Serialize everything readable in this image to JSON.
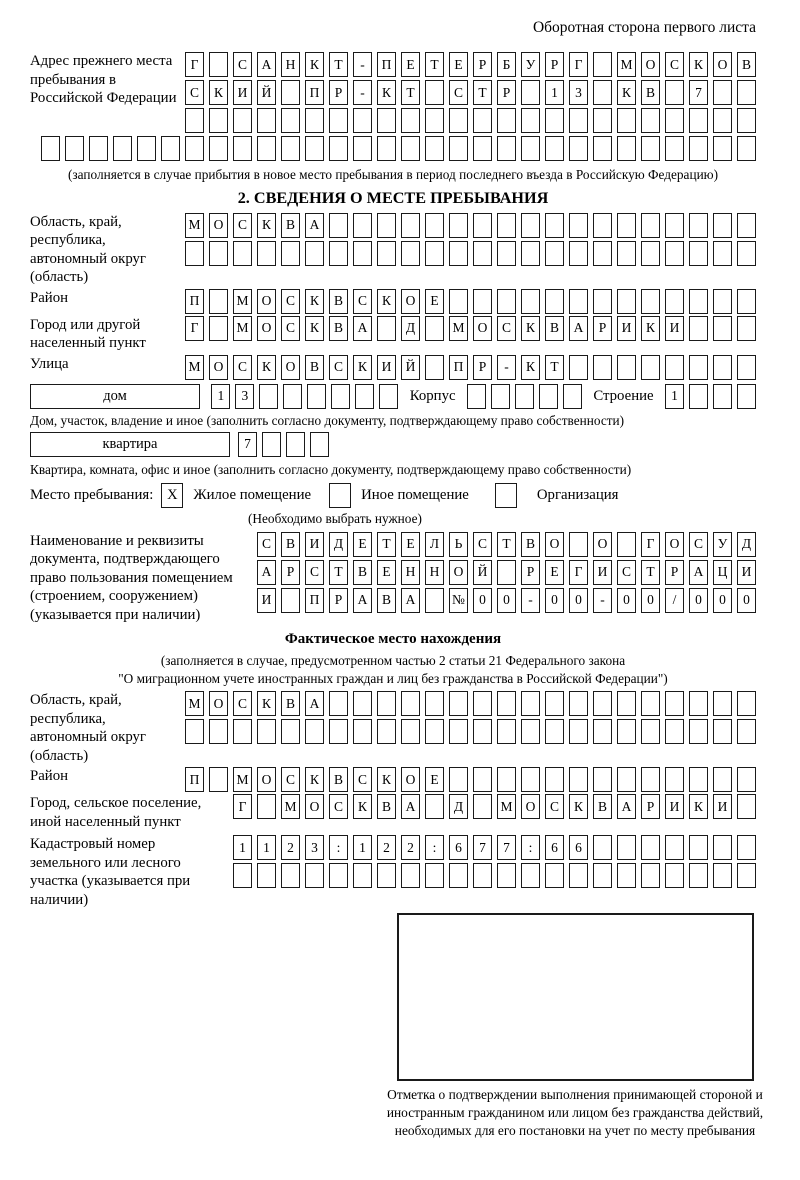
{
  "title": "Оборотная сторона первого листа",
  "prev_address": {
    "label": "Адрес прежнего места пребывания в Российской Федерации",
    "row1": "Г САНКТ-ПЕТЕРБУРГ МОСКОВ",
    "row2": "СКИЙ ПР-КТ СТР 13 КВ 7",
    "row3": "",
    "row4": "",
    "note": "(заполняется в случае прибытия в новое место пребывания в период последнего въезда в Российскую Федерацию)"
  },
  "section2": {
    "header": "2. СВЕДЕНИЯ О МЕСТЕ ПРЕБЫВАНИЯ",
    "region": {
      "label": "Область, край, республика, автономный округ (область)",
      "row1": "МОСКВА",
      "row2": ""
    },
    "district": {
      "label": "Район",
      "row1": "П МОСКВСКОЕ"
    },
    "city": {
      "label": "Город или другой населенный пункт",
      "row1": "Г МОСКВА Д МОСКВАРИКИ"
    },
    "street": {
      "label": "Улица",
      "row1": "МОСКОВСКИЙ ПР-КТ"
    },
    "house": {
      "box_label": "дом",
      "cells": "13",
      "korpus_label": "Корпус",
      "korpus_cells": "",
      "stroenie_label": "Строение",
      "stroenie_cells": "1",
      "note": "Дом, участок, владение и иное (заполнить согласно документу, подтверждающему право собственности)"
    },
    "apartment": {
      "box_label": "квартира",
      "cells": "7",
      "note": "Квартира, комната, офис и иное (заполнить согласно документу, подтверждающему право собственности)"
    },
    "stay_type": {
      "label": "Место пребывания:",
      "options": [
        {
          "label": "Жилое помещение",
          "mark": "X"
        },
        {
          "label": "Иное помещение",
          "mark": ""
        },
        {
          "label": "Организация",
          "mark": ""
        }
      ],
      "hint": "(Необходимо выбрать нужное)"
    },
    "document": {
      "label": "Наименование и реквизиты документа, подтверждающего право пользования помещением (строением, сооружением) (указывается при наличии)",
      "row1": "СВИДЕТЕЛЬСТВО О ГОСУД",
      "row2": "АРСТВЕННОЙ РЕГИСТРАЦИ",
      "row3": "И ПРАВА №00-00-00/000"
    }
  },
  "actual_location": {
    "header": "Фактическое место нахождения",
    "note_line1": "(заполняется в случае, предусмотренном частью 2 статьи 21 Федерального закона",
    "note_line2": "\"О миграционном учете иностранных граждан и лиц без гражданства в Российской Федерации\")",
    "region": {
      "label": "Область, край, республика, автономный округ (область)",
      "row1": "МОСКВА",
      "row2": ""
    },
    "district": {
      "label": "Район",
      "row1": "П МОСКВСКОЕ"
    },
    "city": {
      "label": "Город, сельское поселение, иной населенный пункт",
      "row1": "Г МОСКВА Д МОСКВАРИКИ"
    },
    "cadastral": {
      "label": "Кадастровый номер земельного или лесного участка (указывается при наличии)",
      "row1": "1123:122:677:66",
      "row2": ""
    },
    "stamp_note": "Отметка о подтверждении выполнения принимающей стороной и иностранным гражданином или лицом без гражданства действий, необходимых для его постановки на учет по месту пребывания"
  }
}
